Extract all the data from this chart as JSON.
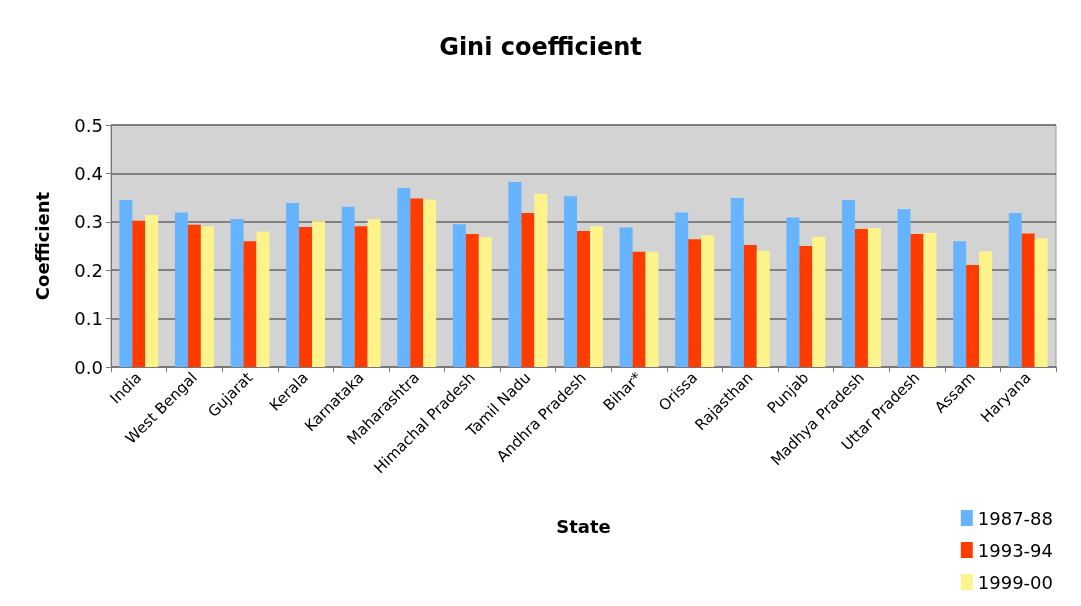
{
  "chart_data": {
    "type": "bar",
    "title": "Gini coefficient",
    "xlabel": "State",
    "ylabel": "Coefficient",
    "categories": [
      "India",
      "West Bengal",
      "Gujarat",
      "Kerala",
      "Karnataka",
      "Maharashtra",
      "Himachal Pradesh",
      "Tamil Nadu",
      "Andhra Pradesh",
      "Bihar*",
      "Orissa",
      "Rajasthan",
      "Punjab",
      "Madhya Pradesh",
      "Uttar Pradesh",
      "Assam",
      "Haryana"
    ],
    "series": [
      {
        "name": "1987-88",
        "color": "#66b3ff",
        "values": [
          0.345,
          0.319,
          0.306,
          0.339,
          0.331,
          0.37,
          0.295,
          0.382,
          0.353,
          0.288,
          0.319,
          0.349,
          0.309,
          0.345,
          0.326,
          0.26,
          0.318
        ]
      },
      {
        "name": "1993-94",
        "color": "#ff3c00",
        "values": [
          0.302,
          0.294,
          0.26,
          0.289,
          0.291,
          0.348,
          0.275,
          0.318,
          0.281,
          0.238,
          0.264,
          0.252,
          0.25,
          0.285,
          0.275,
          0.211,
          0.276
        ]
      },
      {
        "name": "1999-00",
        "color": "#fcf38b",
        "values": [
          0.314,
          0.291,
          0.28,
          0.301,
          0.306,
          0.346,
          0.268,
          0.358,
          0.291,
          0.238,
          0.272,
          0.24,
          0.269,
          0.287,
          0.277,
          0.239,
          0.266
        ]
      }
    ],
    "ylim": [
      0,
      0.5
    ],
    "yticks": [
      "0.0",
      0.1,
      0.2,
      0.3,
      0.4,
      0.5
    ],
    "grid": "y",
    "legend": "bottom right"
  }
}
